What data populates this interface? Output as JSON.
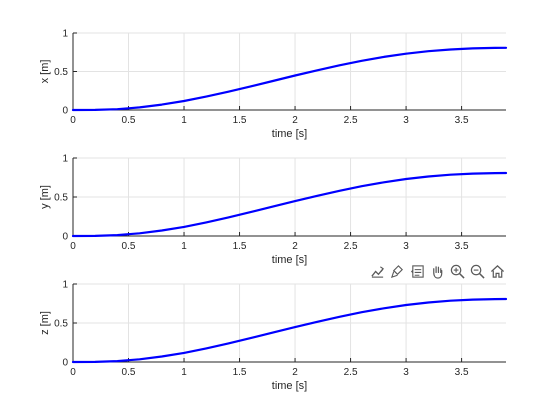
{
  "toolbar": {
    "buttons": [
      "export-icon",
      "brush-icon",
      "data-tips-icon",
      "pan-icon",
      "zoom-in-icon",
      "zoom-out-icon",
      "home-icon"
    ]
  },
  "chart_data": [
    {
      "type": "line",
      "xlabel": "time [s]",
      "ylabel": "x [m]",
      "xlim": [
        0,
        3.9
      ],
      "ylim": [
        0,
        1
      ],
      "xticks": [
        "0",
        "0.5",
        "1",
        "1.5",
        "2",
        "2.5",
        "3",
        "3.5"
      ],
      "yticks": [
        "0",
        "0.5",
        "1"
      ],
      "grid": true,
      "line_color": "#0000ff",
      "series": [
        {
          "x": [
            0,
            0.2,
            0.4,
            0.6,
            0.8,
            1.0,
            1.2,
            1.4,
            1.6,
            1.8,
            2.0,
            2.2,
            2.4,
            2.6,
            2.8,
            3.0,
            3.2,
            3.4,
            3.6,
            3.8,
            3.9
          ],
          "values": [
            0,
            0.001,
            0.011,
            0.034,
            0.07,
            0.117,
            0.174,
            0.238,
            0.306,
            0.377,
            0.448,
            0.516,
            0.58,
            0.639,
            0.689,
            0.731,
            0.763,
            0.786,
            0.8,
            0.807,
            0.808
          ]
        }
      ]
    },
    {
      "type": "line",
      "xlabel": "time [s]",
      "ylabel": "y [m]",
      "xlim": [
        0,
        3.9
      ],
      "ylim": [
        0,
        1
      ],
      "xticks": [
        "0",
        "0.5",
        "1",
        "1.5",
        "2",
        "2.5",
        "3",
        "3.5"
      ],
      "yticks": [
        "0",
        "0.5",
        "1"
      ],
      "grid": true,
      "line_color": "#0000ff",
      "series": [
        {
          "x": [
            0,
            0.2,
            0.4,
            0.6,
            0.8,
            1.0,
            1.2,
            1.4,
            1.6,
            1.8,
            2.0,
            2.2,
            2.4,
            2.6,
            2.8,
            3.0,
            3.2,
            3.4,
            3.6,
            3.8,
            3.9
          ],
          "values": [
            0,
            0.001,
            0.011,
            0.034,
            0.07,
            0.117,
            0.174,
            0.238,
            0.306,
            0.377,
            0.448,
            0.516,
            0.58,
            0.639,
            0.689,
            0.731,
            0.763,
            0.786,
            0.8,
            0.807,
            0.808
          ]
        }
      ]
    },
    {
      "type": "line",
      "xlabel": "time [s]",
      "ylabel": "z [m]",
      "xlim": [
        0,
        3.9
      ],
      "ylim": [
        0,
        1
      ],
      "xticks": [
        "0",
        "0.5",
        "1",
        "1.5",
        "2",
        "2.5",
        "3",
        "3.5"
      ],
      "yticks": [
        "0",
        "0.5",
        "1"
      ],
      "grid": true,
      "line_color": "#0000ff",
      "series": [
        {
          "x": [
            0,
            0.2,
            0.4,
            0.6,
            0.8,
            1.0,
            1.2,
            1.4,
            1.6,
            1.8,
            2.0,
            2.2,
            2.4,
            2.6,
            2.8,
            3.0,
            3.2,
            3.4,
            3.6,
            3.8,
            3.9
          ],
          "values": [
            0,
            0.001,
            0.011,
            0.034,
            0.07,
            0.117,
            0.174,
            0.238,
            0.306,
            0.377,
            0.448,
            0.516,
            0.58,
            0.639,
            0.689,
            0.731,
            0.763,
            0.786,
            0.8,
            0.807,
            0.808
          ]
        }
      ]
    }
  ]
}
